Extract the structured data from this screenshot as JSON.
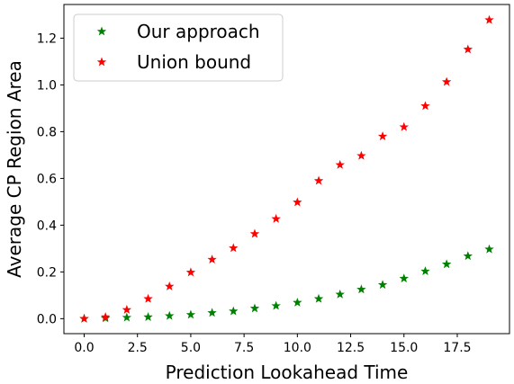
{
  "chart_data": {
    "type": "scatter",
    "title": "",
    "xlabel": "Prediction Lookahead Time",
    "ylabel": "Average CP Region Area",
    "xlim": [
      -0.95,
      19.95
    ],
    "ylim": [
      -0.064,
      1.344
    ],
    "x_ticks": [
      0.0,
      2.5,
      5.0,
      7.5,
      10.0,
      12.5,
      15.0,
      17.5
    ],
    "x_tick_labels": [
      "0.0",
      "2.5",
      "5.0",
      "7.5",
      "10.0",
      "12.5",
      "15.0",
      "17.5"
    ],
    "y_ticks": [
      0.0,
      0.2,
      0.4,
      0.6,
      0.8,
      1.0,
      1.2
    ],
    "y_tick_labels": [
      "0.0",
      "0.2",
      "0.4",
      "0.6",
      "0.8",
      "1.0",
      "1.2"
    ],
    "grid": false,
    "legend_position": "upper-left",
    "marker": "star",
    "x": [
      0,
      1,
      2,
      3,
      4,
      5,
      6,
      7,
      8,
      9,
      10,
      11,
      12,
      13,
      14,
      15,
      16,
      17,
      18,
      19
    ],
    "series": [
      {
        "name": "Our approach",
        "color": "#008000",
        "values": [
          0.0,
          0.002,
          0.005,
          0.007,
          0.012,
          0.017,
          0.025,
          0.032,
          0.044,
          0.055,
          0.069,
          0.085,
          0.104,
          0.125,
          0.145,
          0.172,
          0.203,
          0.233,
          0.268,
          0.297
        ]
      },
      {
        "name": "Union bound",
        "color": "#ff0000",
        "values": [
          0.0,
          0.007,
          0.038,
          0.085,
          0.138,
          0.198,
          0.253,
          0.302,
          0.363,
          0.427,
          0.498,
          0.59,
          0.658,
          0.697,
          0.78,
          0.82,
          0.91,
          1.013,
          1.152,
          1.278
        ]
      }
    ]
  }
}
